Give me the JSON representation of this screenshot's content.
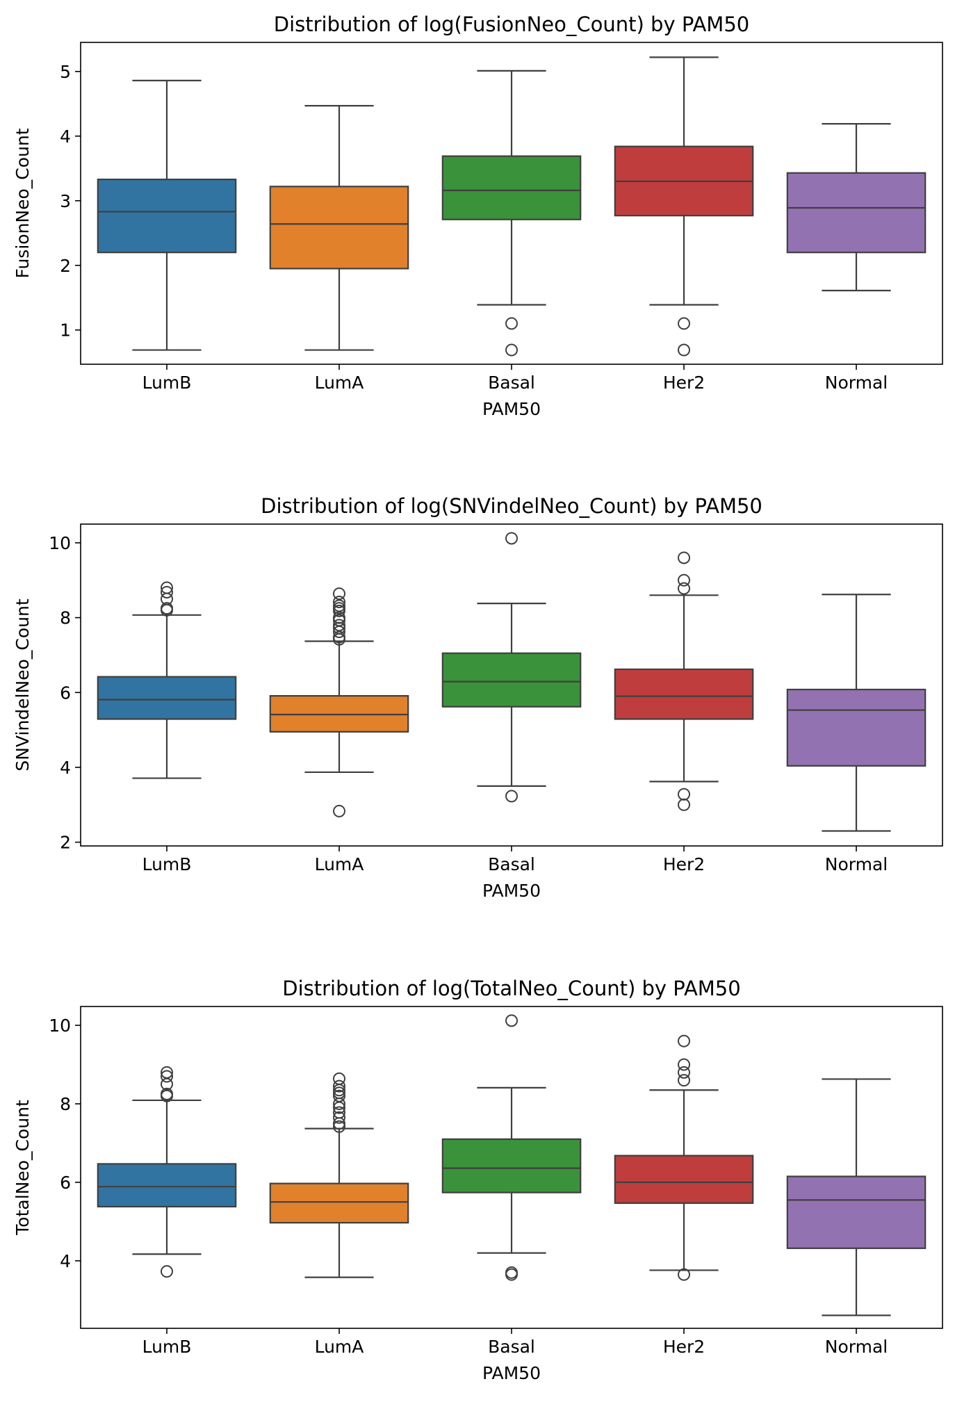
{
  "chart_data": [
    {
      "type": "box",
      "title": "Distribution of log(FusionNeo_Count) by PAM50",
      "xlabel": "PAM50",
      "ylabel": "FusionNeo_Count",
      "ylim": [
        0.47,
        5.45
      ],
      "yticks": [
        1,
        2,
        3,
        4,
        5
      ],
      "categories": [
        "LumB",
        "LumA",
        "Basal",
        "Her2",
        "Normal"
      ],
      "colors": [
        "#3274a1",
        "#e1812c",
        "#3a923a",
        "#c03d3e",
        "#9372b2"
      ],
      "boxes": [
        {
          "whisker_low": 0.69,
          "q1": 2.2,
          "median": 2.83,
          "q3": 3.33,
          "whisker_high": 4.86,
          "outliers": []
        },
        {
          "whisker_low": 0.69,
          "q1": 1.95,
          "median": 2.64,
          "q3": 3.22,
          "whisker_high": 4.47,
          "outliers": []
        },
        {
          "whisker_low": 1.39,
          "q1": 2.71,
          "median": 3.16,
          "q3": 3.69,
          "whisker_high": 5.01,
          "outliers": [
            1.1,
            0.69
          ]
        },
        {
          "whisker_low": 1.39,
          "q1": 2.77,
          "median": 3.3,
          "q3": 3.84,
          "whisker_high": 5.22,
          "outliers": [
            1.1,
            0.69
          ]
        },
        {
          "whisker_low": 1.61,
          "q1": 2.2,
          "median": 2.89,
          "q3": 3.43,
          "whisker_high": 4.19,
          "outliers": []
        }
      ]
    },
    {
      "type": "box",
      "title": "Distribution of log(SNVindelNeo_Count) by PAM50",
      "xlabel": "PAM50",
      "ylabel": "SNVindelNeo_Count",
      "ylim": [
        1.9,
        10.5
      ],
      "yticks": [
        2,
        4,
        6,
        8,
        10
      ],
      "categories": [
        "LumB",
        "LumA",
        "Basal",
        "Her2",
        "Normal"
      ],
      "colors": [
        "#3274a1",
        "#e1812c",
        "#3a923a",
        "#c03d3e",
        "#9372b2"
      ],
      "boxes": [
        {
          "whisker_low": 3.71,
          "q1": 5.29,
          "median": 5.81,
          "q3": 6.42,
          "whisker_high": 8.07,
          "outliers": [
            8.2,
            8.25,
            8.5,
            8.68,
            8.8
          ]
        },
        {
          "whisker_low": 3.87,
          "q1": 4.95,
          "median": 5.41,
          "q3": 5.91,
          "whisker_high": 7.37,
          "outliers": [
            2.83,
            7.42,
            7.48,
            7.62,
            7.72,
            7.8,
            7.93,
            8.0,
            8.18,
            8.25,
            8.32,
            8.42,
            8.64
          ]
        },
        {
          "whisker_low": 3.5,
          "q1": 5.62,
          "median": 6.29,
          "q3": 7.05,
          "whisker_high": 8.38,
          "outliers": [
            3.23,
            10.12
          ]
        },
        {
          "whisker_low": 3.62,
          "q1": 5.29,
          "median": 5.9,
          "q3": 6.62,
          "whisker_high": 8.6,
          "outliers": [
            3.0,
            3.28,
            8.78,
            9.0,
            9.6
          ]
        },
        {
          "whisker_low": 2.3,
          "q1": 4.04,
          "median": 5.53,
          "q3": 6.08,
          "whisker_high": 8.62,
          "outliers": []
        }
      ]
    },
    {
      "type": "box",
      "title": "Distribution of log(TotalNeo_Count) by PAM50",
      "xlabel": "PAM50",
      "ylabel": "TotalNeo_Count",
      "ylim": [
        2.28,
        10.48
      ],
      "yticks": [
        4,
        6,
        8,
        10
      ],
      "categories": [
        "LumB",
        "LumA",
        "Basal",
        "Her2",
        "Normal"
      ],
      "colors": [
        "#3274a1",
        "#e1812c",
        "#3a923a",
        "#c03d3e",
        "#9372b2"
      ],
      "boxes": [
        {
          "whisker_low": 4.17,
          "q1": 5.38,
          "median": 5.89,
          "q3": 6.47,
          "whisker_high": 8.09,
          "outliers": [
            3.73,
            8.2,
            8.25,
            8.5,
            8.7,
            8.8
          ]
        },
        {
          "whisker_low": 3.58,
          "q1": 4.97,
          "median": 5.5,
          "q3": 5.97,
          "whisker_high": 7.37,
          "outliers": [
            7.42,
            7.5,
            7.65,
            7.78,
            7.9,
            8.0,
            8.2,
            8.28,
            8.35,
            8.45,
            8.64
          ]
        },
        {
          "whisker_low": 4.2,
          "q1": 5.74,
          "median": 6.36,
          "q3": 7.1,
          "whisker_high": 8.41,
          "outliers": [
            3.65,
            3.7,
            10.12
          ]
        },
        {
          "whisker_low": 3.76,
          "q1": 5.47,
          "median": 6.0,
          "q3": 6.68,
          "whisker_high": 8.35,
          "outliers": [
            3.65,
            8.6,
            8.8,
            9.0,
            9.6
          ]
        },
        {
          "whisker_low": 2.61,
          "q1": 4.32,
          "median": 5.55,
          "q3": 6.15,
          "whisker_high": 8.63,
          "outliers": []
        }
      ]
    }
  ]
}
